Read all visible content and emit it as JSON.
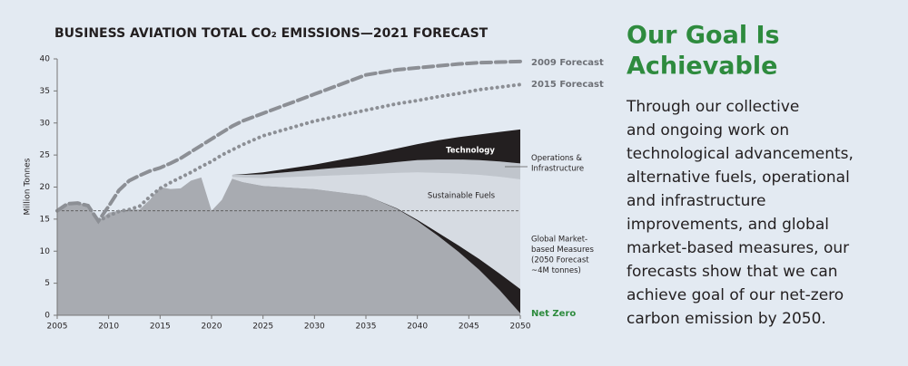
{
  "chart_data": {
    "type": "stacked-area",
    "title": "BUSINESS AVIATION TOTAL CO₂ EMISSIONS—2021 FORECAST",
    "y_label": "Million Tonnes",
    "x": [
      2005,
      2006,
      2007,
      2008,
      2009,
      2010,
      2011,
      2012,
      2013,
      2014,
      2015,
      2016,
      2017,
      2018,
      2019,
      2020,
      2021,
      2022,
      2023,
      2025,
      2030,
      2035,
      2038,
      2040,
      2042,
      2044,
      2046,
      2048,
      2050
    ],
    "xlim": [
      2005,
      2050
    ],
    "xticks": [
      2005,
      2010,
      2015,
      2020,
      2025,
      2030,
      2035,
      2040,
      2045,
      2050
    ],
    "ylim": [
      0,
      40
    ],
    "yticks": [
      0,
      5,
      10,
      15,
      20,
      25,
      30,
      35,
      40
    ],
    "grid": false,
    "reference_line": 16.3,
    "series": [
      {
        "kind": "area",
        "color": "#a8abb1",
        "values": [
          16.3,
          17.5,
          17.5,
          17.2,
          14.7,
          16,
          16.3,
          16.5,
          16.5,
          18,
          20,
          19.7,
          19.8,
          21,
          21.5,
          16.3,
          18,
          21.3,
          20.8,
          20.2,
          19.7,
          18.7,
          16.6,
          14.7,
          12.4,
          9.9,
          7.1,
          3.9,
          0.3
        ]
      },
      {
        "kind": "area",
        "name": [
          "Global Market-",
          "based Measures",
          "(2050 Forecast",
          "~4M tonnes)"
        ],
        "color": "#231f20",
        "values": [
          null,
          null,
          null,
          null,
          null,
          null,
          null,
          null,
          null,
          null,
          null,
          null,
          null,
          null,
          null,
          null,
          null,
          0,
          0,
          0,
          0,
          0,
          0.1,
          0.2,
          0.5,
          1,
          1.7,
          2.6,
          3.8
        ]
      },
      {
        "kind": "area",
        "name": "Sustainable Fuels",
        "color": "#d6dbe2",
        "values": [
          null,
          null,
          null,
          null,
          null,
          null,
          null,
          null,
          null,
          null,
          null,
          null,
          null,
          null,
          null,
          null,
          null,
          0.3,
          0.7,
          1.2,
          2,
          3.3,
          5.5,
          7.4,
          9.3,
          11.2,
          13.1,
          15.1,
          17.1
        ]
      },
      {
        "kind": "area",
        "name": [
          "Operations &",
          "Infrastructure"
        ],
        "color": "#c0c5cc",
        "values": [
          null,
          null,
          null,
          null,
          null,
          null,
          null,
          null,
          null,
          null,
          null,
          null,
          null,
          null,
          null,
          null,
          null,
          0.3,
          0.4,
          0.6,
          1,
          1.4,
          1.7,
          1.9,
          2.1,
          2.2,
          2.3,
          2.4,
          2.5
        ]
      },
      {
        "kind": "area",
        "name": "Technology",
        "color": "#231f20",
        "values": [
          null,
          null,
          null,
          null,
          null,
          null,
          null,
          null,
          null,
          null,
          null,
          null,
          null,
          null,
          null,
          null,
          null,
          0,
          0.1,
          0.3,
          0.8,
          1.6,
          2.1,
          2.5,
          3,
          3.5,
          4,
          4.6,
          5.3
        ]
      },
      {
        "kind": "line",
        "style": "dashed",
        "name": "2009 Forecast",
        "color": "#8c8f95",
        "values": [
          16.3,
          17.4,
          17.5,
          17.1,
          14.7,
          17,
          19.5,
          21,
          21.8,
          22.5,
          23,
          23.7,
          24.5,
          25.5,
          26.5,
          27.5,
          28.5,
          29.5,
          30.3,
          31.5,
          34.5,
          37.5,
          38.3,
          38.6,
          38.9,
          39.2,
          39.4,
          39.5,
          39.6
        ]
      },
      {
        "kind": "line",
        "style": "dotted",
        "name": "2015 Forecast",
        "color": "#8c8f95",
        "values": [
          null,
          null,
          null,
          null,
          14.7,
          15.5,
          16.2,
          16.5,
          17,
          18.5,
          19.8,
          20.7,
          21.5,
          22.3,
          23.2,
          24,
          25,
          25.8,
          26.6,
          28,
          30.3,
          32,
          33,
          33.5,
          34.1,
          34.6,
          35.2,
          35.6,
          36
        ]
      }
    ],
    "annotation": "Net Zero",
    "annotation_color": "#2e8b3e"
  },
  "side_panel": {
    "heading": [
      "Our Goal Is",
      "Achievable"
    ],
    "body": [
      "Through our collective",
      "and ongoing work on",
      "technological advancements,",
      "alternative fuels, operational",
      "and infrastructure",
      "improvements, and global",
      "market-based measures, our",
      "forecasts show that we can",
      "achieve goal of our net-zero",
      "carbon emission by 2050."
    ]
  }
}
